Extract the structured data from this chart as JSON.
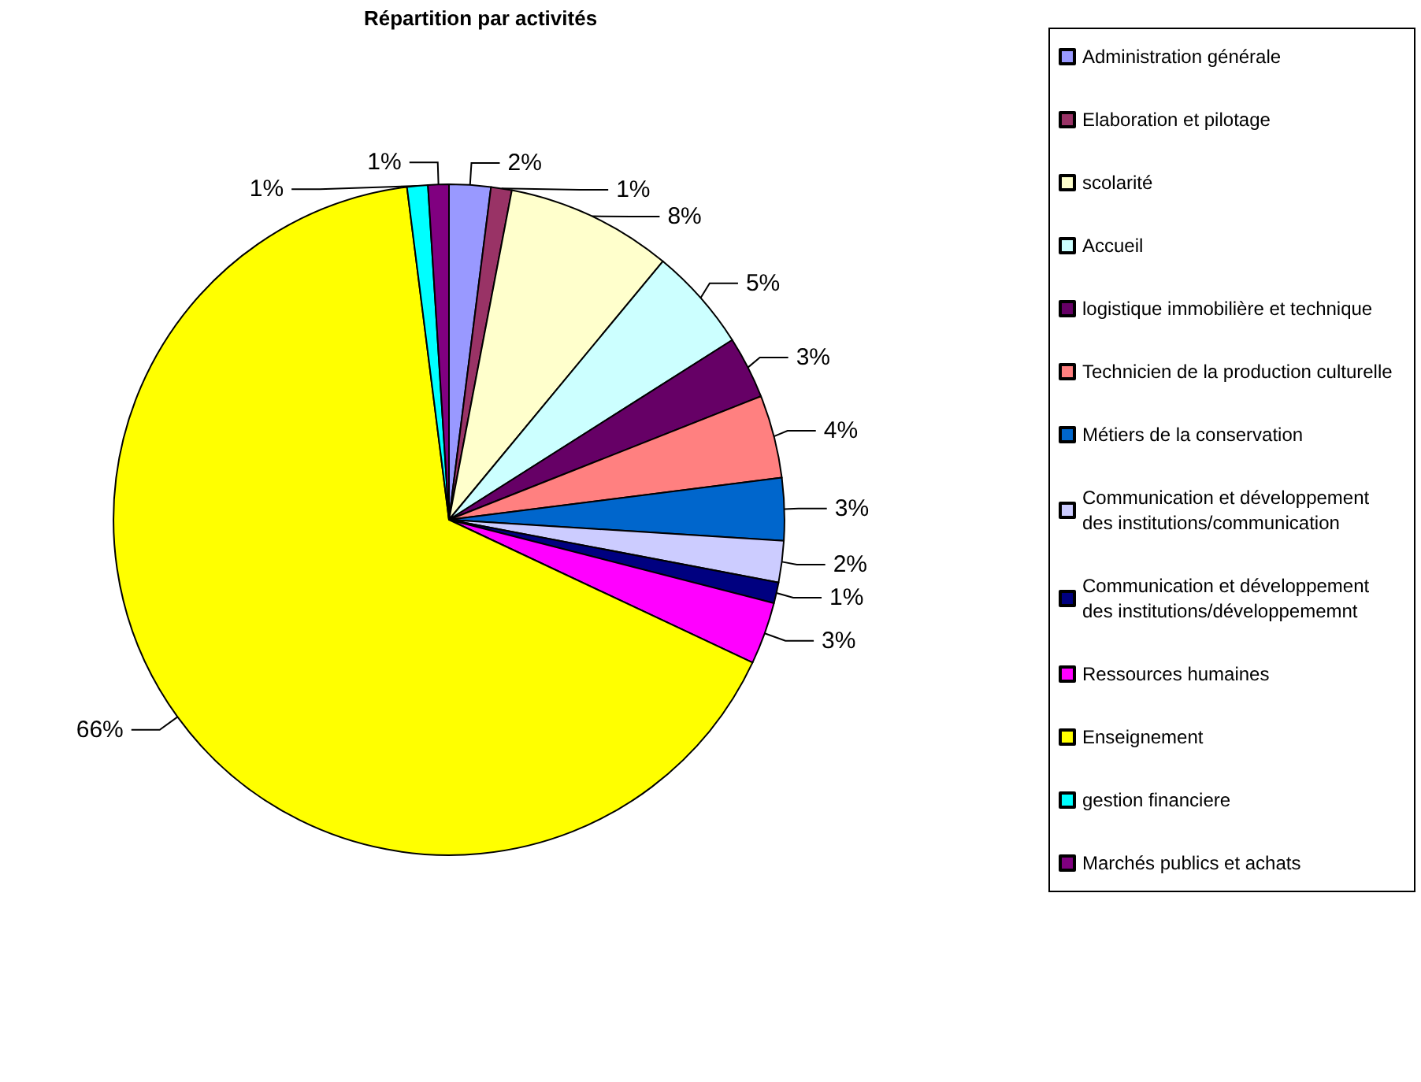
{
  "chart_data": {
    "type": "pie",
    "title": "Répartition par activités",
    "categories": [
      "Administration générale",
      "Elaboration et pilotage",
      "scolarité",
      "Accueil",
      "logistique immobilière et technique",
      "Technicien de la production culturelle",
      "Métiers de la conservation",
      "Communication et développement des institutions/communication",
      "Communication et développement des institutions/développememnt",
      "Ressources humaines",
      "Enseignement",
      "gestion financiere",
      "Marchés publics et achats"
    ],
    "values": [
      2,
      1,
      8,
      5,
      3,
      4,
      3,
      2,
      1,
      3,
      66,
      1,
      1
    ],
    "colors": [
      "#9999ff",
      "#993366",
      "#ffffcc",
      "#ccffff",
      "#660066",
      "#ff8080",
      "#0066cc",
      "#ccccff",
      "#000080",
      "#ff00ff",
      "#ffff00",
      "#00ffff",
      "#800080"
    ],
    "value_labels": [
      "2%",
      "1%",
      "8%",
      "5%",
      "3%",
      "4%",
      "3%",
      "2%",
      "1%",
      "3%",
      "66%",
      "1%",
      "1%"
    ],
    "legend": "right"
  }
}
